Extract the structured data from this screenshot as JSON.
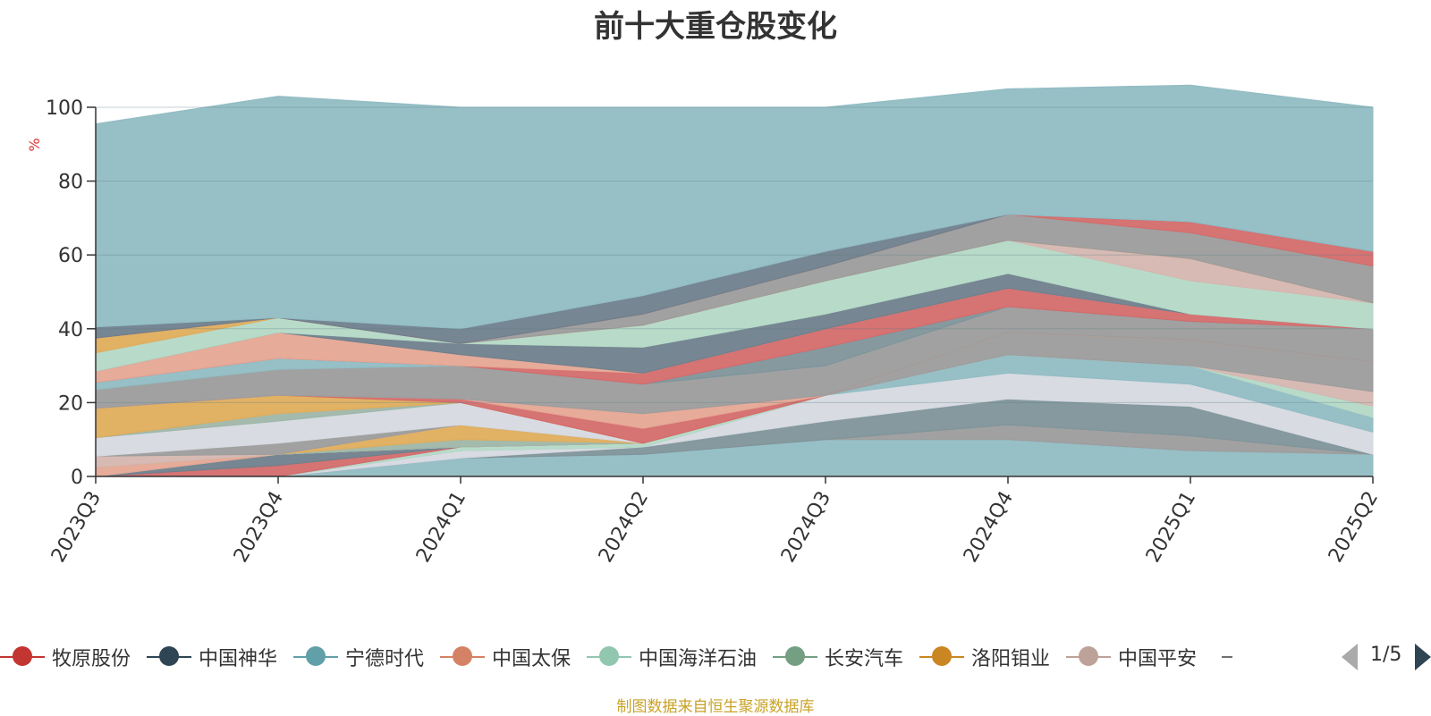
{
  "title": "前十大重仓股变化",
  "source_note": "制图数据来自恒生聚源数据库",
  "pager": {
    "text": "1/5"
  },
  "chart_data": {
    "type": "area",
    "stacked": true,
    "x": [
      "2023Q3",
      "2023Q4",
      "2024Q1",
      "2024Q2",
      "2024Q3",
      "2024Q4",
      "2025Q1",
      "2025Q2"
    ],
    "ylabel": "%",
    "ylim": [
      0,
      100
    ],
    "yticks": [
      0,
      20,
      40,
      60,
      80,
      100
    ],
    "grid": true,
    "legend_position": "bottom",
    "series": [
      {
        "name": "",
        "color": "#91bcc3",
        "values": [
          0,
          0,
          5,
          6,
          10,
          10,
          7,
          6
        ]
      },
      {
        "name": "",
        "color": "#9c9c9c",
        "values": [
          0,
          0,
          0,
          0,
          0,
          4,
          4,
          0
        ]
      },
      {
        "name": "",
        "color": "#7e949a",
        "values": [
          0,
          0,
          0,
          2,
          5,
          7,
          8,
          0
        ]
      },
      {
        "name": "",
        "color": "#d6d9e0",
        "values": [
          0,
          0,
          2,
          0,
          7,
          7,
          6,
          6
        ]
      },
      {
        "name": "",
        "color": "#91bcc3",
        "values": [
          0,
          0,
          0,
          0,
          0,
          5,
          5,
          4
        ]
      },
      {
        "name": "",
        "color": "#b4d9c6",
        "values": [
          0,
          0,
          1,
          1,
          0,
          0,
          0,
          3
        ]
      },
      {
        "name": "",
        "color": "#d5b6b0",
        "values": [
          0,
          0,
          0,
          0,
          0,
          0,
          0,
          4
        ]
      },
      {
        "name": "",
        "color": "#9c9c9c",
        "values": [
          0,
          0,
          0,
          0,
          0,
          6,
          7,
          8
        ]
      },
      {
        "name": "牧原股份",
        "color": "#d46b6b",
        "values": [
          0,
          3,
          0,
          0,
          0,
          0,
          0,
          0
        ]
      },
      {
        "name": "中国神华",
        "color": "#6f7f8c",
        "values": [
          0,
          3,
          0,
          0,
          0,
          0,
          0,
          0
        ]
      },
      {
        "name": "宁德时代",
        "color": "#91bcc3",
        "values": [
          0,
          0,
          0,
          0,
          0,
          0,
          0,
          0
        ]
      },
      {
        "name": "中国太保",
        "color": "#e5a693",
        "values": [
          2.5,
          0,
          0,
          0,
          0,
          0,
          0,
          0
        ]
      },
      {
        "name": "中国海洋石油",
        "color": "#b4d9c6",
        "values": [
          0,
          0,
          0,
          0,
          0,
          0,
          0,
          0
        ]
      },
      {
        "name": "长安汽车",
        "color": "#9fb6a8",
        "values": [
          0,
          0,
          2,
          0,
          0,
          0,
          0,
          0
        ]
      },
      {
        "name": "洛阳钼业",
        "color": "#dfad5c",
        "values": [
          0,
          0,
          4,
          0,
          0,
          0,
          0,
          0
        ]
      },
      {
        "name": "中国平安",
        "color": "#d5b6b0",
        "values": [
          3,
          0,
          0,
          0,
          0,
          0,
          0,
          0
        ]
      },
      {
        "name": "",
        "color": "#9c9c9c",
        "values": [
          0,
          3,
          0,
          0,
          0,
          0,
          0,
          0
        ]
      },
      {
        "name": "",
        "color": "#d6d9e0",
        "values": [
          5,
          6,
          6,
          0,
          0,
          0,
          0,
          0
        ]
      },
      {
        "name": "",
        "color": "#9fb6a8",
        "values": [
          0,
          2,
          0,
          0,
          0,
          0,
          0,
          0
        ]
      },
      {
        "name": "",
        "color": "#dfad5c",
        "values": [
          8,
          5,
          0,
          0,
          0,
          0,
          0,
          0
        ]
      },
      {
        "name": "",
        "color": "#d46b6b",
        "values": [
          0,
          0,
          1,
          4,
          0,
          0,
          0,
          0
        ]
      },
      {
        "name": "",
        "color": "#e5a693",
        "values": [
          0,
          0,
          0,
          4,
          0,
          0,
          0,
          0
        ]
      },
      {
        "name": "",
        "color": "#9c9c9c",
        "values": [
          5,
          7,
          9,
          8,
          8,
          7,
          5,
          9
        ]
      },
      {
        "name": "",
        "color": "#91bcc3",
        "values": [
          2,
          3,
          0,
          0,
          0,
          0,
          0,
          0
        ]
      },
      {
        "name": "",
        "color": "#7e949a",
        "values": [
          0,
          0,
          0,
          0,
          5,
          0,
          0,
          0
        ]
      },
      {
        "name": "",
        "color": "#d46b6b",
        "values": [
          0,
          0,
          0,
          3,
          5,
          5,
          2,
          0
        ]
      },
      {
        "name": "",
        "color": "#e5a693",
        "values": [
          3,
          7,
          3,
          0,
          0,
          0,
          0,
          0
        ]
      },
      {
        "name": "",
        "color": "#6f7f8c",
        "values": [
          0,
          0,
          3,
          7,
          4,
          4,
          0,
          0
        ]
      },
      {
        "name": "",
        "color": "#b4d9c6",
        "values": [
          5,
          4,
          0,
          6,
          9,
          9,
          9,
          7
        ]
      },
      {
        "name": "",
        "color": "#d5b6b0",
        "values": [
          0,
          0,
          0,
          0,
          0,
          0,
          6,
          0
        ]
      },
      {
        "name": "",
        "color": "#dfad5c",
        "values": [
          4,
          0,
          0,
          0,
          0,
          0,
          0,
          0
        ]
      },
      {
        "name": "",
        "color": "#9c9c9c",
        "values": [
          0,
          0,
          0,
          3,
          4,
          7,
          7,
          10
        ]
      },
      {
        "name": "",
        "color": "#d46b6b",
        "values": [
          0,
          0,
          0,
          0,
          0,
          0,
          3,
          4
        ]
      },
      {
        "name": "",
        "color": "#6f7f8c",
        "values": [
          3,
          0,
          4,
          5,
          4,
          0,
          0,
          0
        ]
      },
      {
        "name": "",
        "color": "#91bcc3",
        "values": [
          55,
          60,
          60,
          51,
          39,
          34,
          37,
          39
        ]
      }
    ]
  },
  "legend": {
    "items": [
      {
        "label": "牧原股份",
        "color": "#c23531"
      },
      {
        "label": "中国神华",
        "color": "#2f4554"
      },
      {
        "label": "宁德时代",
        "color": "#61a0a8"
      },
      {
        "label": "中国太保",
        "color": "#d48265"
      },
      {
        "label": "中国海洋石油",
        "color": "#91c7ae"
      },
      {
        "label": "长安汽车",
        "color": "#749f83"
      },
      {
        "label": "洛阳钼业",
        "color": "#ca8622"
      },
      {
        "label": "中国平安",
        "color": "#bda29a"
      }
    ],
    "overflow_color": "#6e7074"
  }
}
